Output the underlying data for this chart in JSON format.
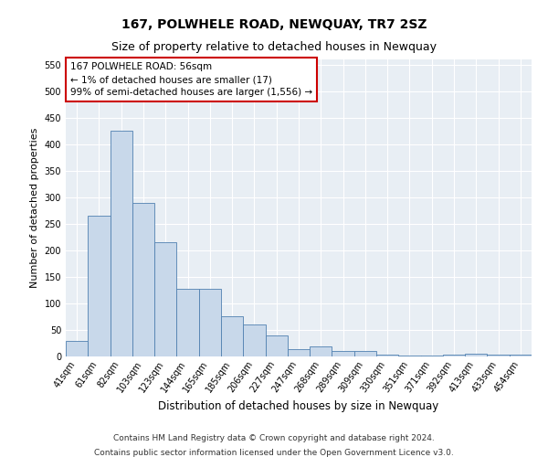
{
  "title": "167, POLWHELE ROAD, NEWQUAY, TR7 2SZ",
  "subtitle": "Size of property relative to detached houses in Newquay",
  "xlabel": "Distribution of detached houses by size in Newquay",
  "ylabel": "Number of detached properties",
  "bar_labels": [
    "41sqm",
    "61sqm",
    "82sqm",
    "103sqm",
    "123sqm",
    "144sqm",
    "165sqm",
    "185sqm",
    "206sqm",
    "227sqm",
    "247sqm",
    "268sqm",
    "289sqm",
    "309sqm",
    "330sqm",
    "351sqm",
    "371sqm",
    "392sqm",
    "413sqm",
    "433sqm",
    "454sqm"
  ],
  "bar_values": [
    30,
    265,
    425,
    290,
    215,
    127,
    127,
    75,
    60,
    40,
    14,
    19,
    10,
    10,
    4,
    2,
    2,
    3,
    5,
    4,
    3
  ],
  "bar_color": "#c8d8ea",
  "bar_edge_color": "#5080b0",
  "annotation_text": "167 POLWHELE ROAD: 56sqm\n← 1% of detached houses are smaller (17)\n99% of semi-detached houses are larger (1,556) →",
  "annotation_box_color": "white",
  "annotation_box_edge_color": "#cc0000",
  "ylim": [
    0,
    560
  ],
  "yticks": [
    0,
    50,
    100,
    150,
    200,
    250,
    300,
    350,
    400,
    450,
    500,
    550
  ],
  "footer_line1": "Contains HM Land Registry data © Crown copyright and database right 2024.",
  "footer_line2": "Contains public sector information licensed under the Open Government Licence v3.0.",
  "plot_bg_color": "#e8eef4",
  "grid_color": "white",
  "title_fontsize": 10,
  "subtitle_fontsize": 9,
  "xlabel_fontsize": 8.5,
  "ylabel_fontsize": 8,
  "tick_fontsize": 7,
  "annot_fontsize": 7.5,
  "footer_fontsize": 6.5
}
